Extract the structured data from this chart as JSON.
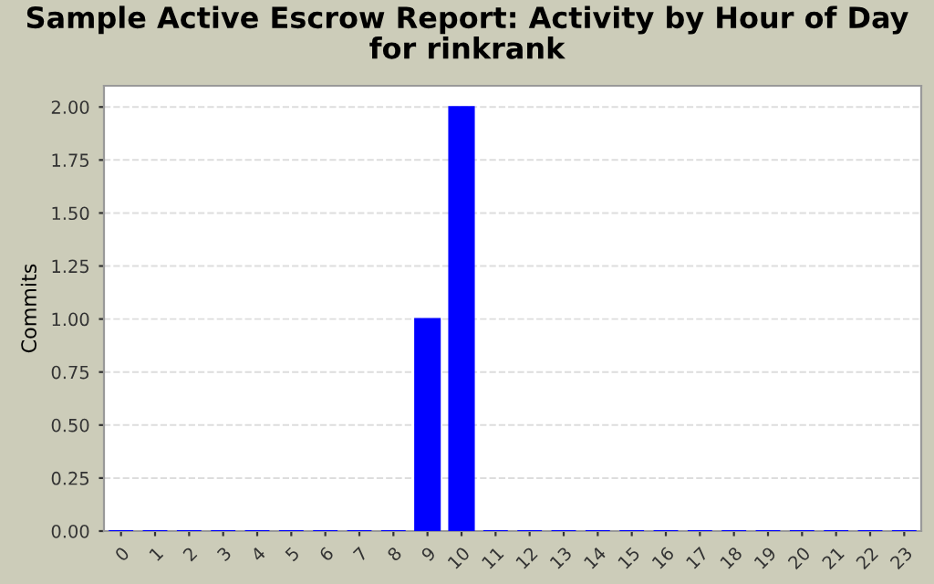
{
  "chart_data": {
    "type": "bar",
    "title": "Sample Active Escrow Report: Activity by Hour of Day\nfor rinkrank",
    "ylabel": "Commits",
    "categories": [
      "0",
      "1",
      "2",
      "3",
      "4",
      "5",
      "6",
      "7",
      "8",
      "9",
      "10",
      "11",
      "12",
      "13",
      "14",
      "15",
      "16",
      "17",
      "18",
      "19",
      "20",
      "21",
      "22",
      "23"
    ],
    "values": [
      0,
      0,
      0,
      0,
      0,
      0,
      0,
      0,
      0,
      1,
      2,
      0,
      0,
      0,
      0,
      0,
      0,
      0,
      0,
      0,
      0,
      0,
      0,
      0
    ],
    "color": "#0000ff",
    "ylim": [
      0,
      2.1
    ],
    "yticks": [
      {
        "value": 0,
        "label": "0.00"
      },
      {
        "value": 0.25,
        "label": "0.25"
      },
      {
        "value": 0.5,
        "label": "0.50"
      },
      {
        "value": 0.75,
        "label": "0.75"
      },
      {
        "value": 1,
        "label": "1.00"
      },
      {
        "value": 1.25,
        "label": "1.25"
      },
      {
        "value": 1.5,
        "label": "1.50"
      },
      {
        "value": 1.75,
        "label": "1.75"
      },
      {
        "value": 2,
        "label": "2.00"
      }
    ],
    "grid": "y"
  }
}
